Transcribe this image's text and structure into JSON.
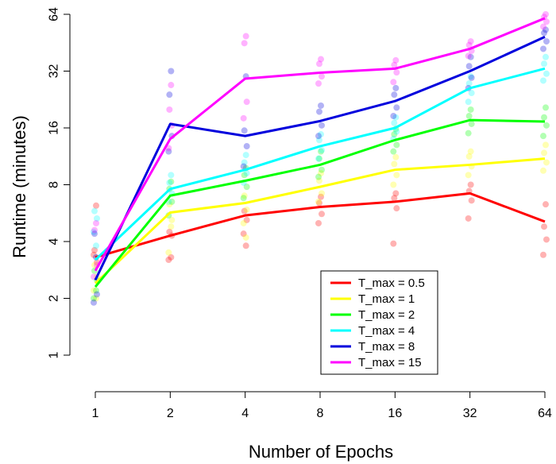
{
  "chart_data": {
    "type": "line",
    "xlabel": "Number of Epochs",
    "ylabel": "Runtime (minutes)",
    "x_scale": "log2",
    "y_scale": "log2",
    "x": [
      1,
      2,
      4,
      8,
      16,
      32,
      64
    ],
    "x_tick_labels": [
      "1",
      "2",
      "4",
      "8",
      "16",
      "32",
      "64"
    ],
    "y_ticks": [
      1,
      2,
      4,
      8,
      16,
      32,
      64
    ],
    "y_tick_labels": [
      "1",
      "2",
      "4",
      "8",
      "16",
      "32",
      "64"
    ],
    "xlim": [
      1,
      64
    ],
    "ylim": [
      1,
      64
    ],
    "grid": false,
    "legend_position": "bottom-right",
    "series": [
      {
        "name": "T_max = 0.5",
        "color": "#ff0000",
        "values": [
          3.3,
          4.3,
          5.5,
          6.1,
          6.5,
          7.2,
          5.1
        ],
        "points": [
          [
            3.4,
            3.1,
            3.6,
            6.2
          ],
          [
            3.2,
            4.3,
            4.5,
            3.3
          ],
          [
            4.4,
            5.2,
            5.8,
            3.8
          ],
          [
            5.0,
            5.6,
            6.4,
            6.9
          ],
          [
            3.9,
            6.0,
            6.8,
            7.2
          ],
          [
            5.3,
            6.6,
            7.4,
            8.0
          ],
          [
            3.4,
            4.1,
            4.8,
            6.3
          ]
        ]
      },
      {
        "name": "T_max = 1",
        "color": "#ffff00",
        "values": [
          2.4,
          5.7,
          6.4,
          7.8,
          9.6,
          10.2,
          11.0
        ],
        "points": [
          [
            2.2,
            2.6,
            3.0,
            2.0
          ],
          [
            3.5,
            5.2,
            6.3,
            4.8
          ],
          [
            5.0,
            5.9,
            7.0,
            4.2
          ],
          [
            6.5,
            7.2,
            8.4,
            9.2
          ],
          [
            8.0,
            9.0,
            10.3,
            11.2
          ],
          [
            9.0,
            10.0,
            11.3,
            12.0
          ],
          [
            9.5,
            10.5,
            11.8,
            13.0
          ]
        ]
      },
      {
        "name": "T_max = 2",
        "color": "#00ff00",
        "values": [
          2.3,
          7.0,
          8.4,
          10.2,
          13.8,
          17.6,
          17.3
        ],
        "points": [
          [
            2.0,
            2.5,
            2.8,
            2.2
          ],
          [
            5.5,
            6.5,
            7.6,
            8.3
          ],
          [
            6.8,
            7.8,
            9.0,
            9.8
          ],
          [
            8.8,
            9.6,
            11.0,
            12.0
          ],
          [
            12.0,
            13.0,
            14.8,
            15.8
          ],
          [
            15.0,
            16.8,
            18.5,
            20.0
          ],
          [
            14.5,
            16.5,
            18.2,
            20.5
          ]
        ]
      },
      {
        "name": "T_max = 4",
        "color": "#00ffff",
        "values": [
          3.2,
          7.6,
          9.6,
          12.8,
          16.0,
          26.0,
          33.0
        ],
        "points": [
          [
            4.5,
            5.3,
            5.8,
            3.8
          ],
          [
            6.5,
            7.2,
            8.2,
            9.0
          ],
          [
            8.2,
            9.2,
            10.5,
            11.5
          ],
          [
            11.0,
            12.2,
            13.8,
            14.8
          ],
          [
            14.0,
            15.3,
            17.0,
            18.2
          ],
          [
            22.0,
            24.5,
            27.5,
            30.0
          ],
          [
            28.5,
            31.0,
            35.0,
            38.0
          ]
        ]
      },
      {
        "name": "T_max = 8",
        "color": "#0000dd",
        "values": [
          2.5,
          16.8,
          14.5,
          17.4,
          22.2,
          32.0,
          48.6
        ],
        "points": [
          [
            1.9,
            2.1,
            4.4,
            3.3
          ],
          [
            12.0,
            14.5,
            24.0,
            32.0
          ],
          [
            10.0,
            12.8,
            15.5,
            30.0
          ],
          [
            14.5,
            16.5,
            19.5,
            21.0
          ],
          [
            18.5,
            20.5,
            24.0,
            26.0
          ],
          [
            26.0,
            29.5,
            34.0,
            38.0
          ],
          [
            42.0,
            46.0,
            51.0,
            53.0
          ]
        ]
      },
      {
        "name": "T_max = 15",
        "color": "#ff00ff",
        "values": [
          2.8,
          14.0,
          29.2,
          31.4,
          33.0,
          42.0,
          61.0
        ],
        "points": [
          [
            2.6,
            3.0,
            4.6,
            5.0
          ],
          [
            12.5,
            16.5,
            20.0,
            27.0
          ],
          [
            18.0,
            22.0,
            45.0,
            49.0
          ],
          [
            27.5,
            30.0,
            35.0,
            37.0
          ],
          [
            28.0,
            31.5,
            34.5,
            36.5
          ],
          [
            38.5,
            41.0,
            44.0,
            46.0
          ],
          [
            55.0,
            58.5,
            62.0,
            64.0
          ]
        ]
      }
    ]
  }
}
